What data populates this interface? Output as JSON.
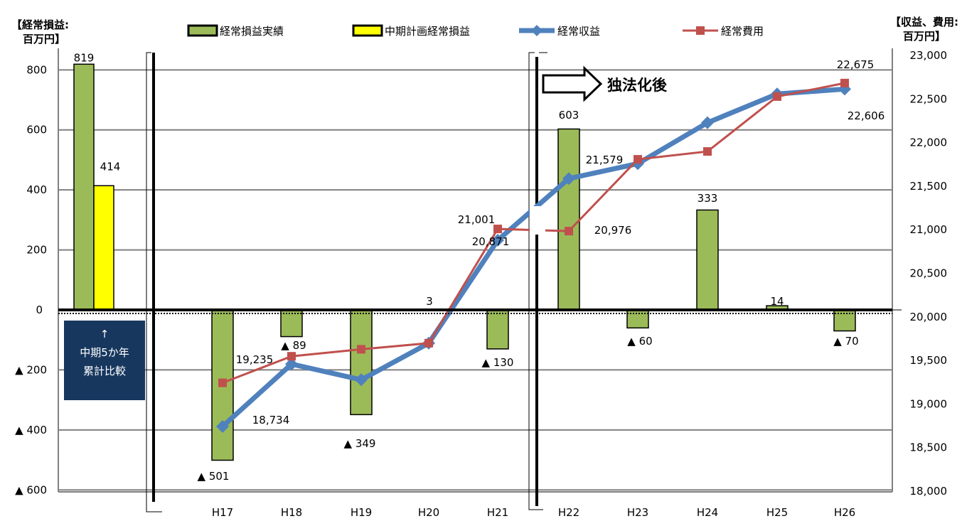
{
  "chart_data": {
    "type": "bar+line",
    "left_axis": {
      "title_line1": "【経常損益:",
      "title_line2": "百万円】",
      "ylim": [
        -600,
        900
      ],
      "ticks": [
        "800",
        "600",
        "400",
        "200",
        "0",
        "▲ 200",
        "▲ 400",
        "▲ 600"
      ],
      "tick_values": [
        800,
        600,
        400,
        200,
        0,
        -200,
        -400,
        -600
      ]
    },
    "right_axis": {
      "title_line1": "【収益、費用:",
      "title_line2": "百万円】",
      "ylim": [
        18000,
        23000
      ],
      "ticks": [
        "23,000",
        "22,500",
        "22,000",
        "21,500",
        "21,000",
        "20,500",
        "20,000",
        "19,500",
        "19,000",
        "18,500",
        "18,000"
      ],
      "tick_values": [
        23000,
        22500,
        22000,
        21500,
        21000,
        20500,
        20000,
        19500,
        19000,
        18500,
        18000
      ]
    },
    "legend": [
      {
        "name": "経常損益実績",
        "color": "#9bbb59",
        "kind": "bar"
      },
      {
        "name": "中期計画経常損益",
        "color": "#ffff00",
        "kind": "bar"
      },
      {
        "name": "経常収益",
        "color": "#4f81bd",
        "kind": "line"
      },
      {
        "name": "経常費用",
        "color": "#c0504d",
        "kind": "line"
      }
    ],
    "summary_bars": {
      "actual": {
        "value": 819,
        "label": "819"
      },
      "plan": {
        "value": 414,
        "label": "414"
      }
    },
    "categories": [
      "H17",
      "H18",
      "H19",
      "H20",
      "H21",
      "H22",
      "H23",
      "H24",
      "H25",
      "H26"
    ],
    "bars": {
      "name": "経常損益実績",
      "values": [
        -501,
        -89,
        -349,
        3,
        -130,
        603,
        -60,
        333,
        14,
        -70
      ],
      "labels": [
        "▲ 501",
        "▲ 89",
        "▲ 349",
        "3",
        "▲ 130",
        "603",
        "▲ 60",
        "333",
        "14",
        "▲ 70"
      ]
    },
    "revenue": {
      "name": "経常収益",
      "values": [
        18734,
        19450,
        19270,
        19690,
        20871,
        21579,
        21750,
        22220,
        22550,
        22606
      ],
      "labels": {
        "0": "18,734",
        "4": "20,871",
        "5": "21,579",
        "9": "22,606"
      }
    },
    "expense": {
      "name": "経常費用",
      "values": [
        19235,
        19540,
        19620,
        19690,
        21001,
        20976,
        21800,
        21890,
        22520,
        22675
      ],
      "labels": {
        "0": "19,235",
        "4": "21,001",
        "5": "20,976",
        "9": "22,675"
      }
    },
    "annotation": "独法化後",
    "note": [
      "↑",
      "中期5か年",
      "累計比較"
    ],
    "colors": {
      "gridline": "#808080",
      "note_bg": "#17375e",
      "frame": "#000000"
    }
  }
}
